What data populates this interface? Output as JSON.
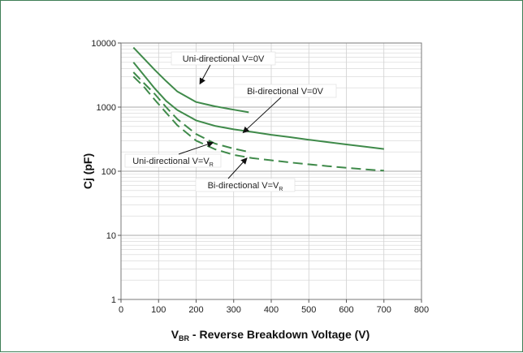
{
  "chart_data": {
    "type": "line",
    "title": "",
    "xlabel": {
      "main": "V",
      "sub": "BR",
      "rest": " - Reverse Breakdown Voltage (V)"
    },
    "ylabel": "Cj (pF)",
    "xlim": [
      0,
      800
    ],
    "ylim": [
      1,
      10000
    ],
    "yscale": "log",
    "grid": true,
    "legend": "none",
    "x_ticks": [
      0,
      100,
      200,
      300,
      400,
      500,
      600,
      700,
      800
    ],
    "x_tick_labels": [
      "0",
      "100",
      "200",
      "300",
      "400",
      "500",
      "600",
      "700",
      "800"
    ],
    "y_ticks": [
      1,
      10,
      100,
      1000,
      10000
    ],
    "y_tick_labels": [
      "1",
      "10",
      "100",
      "1000",
      "10000"
    ],
    "line_color": "#3f8a4a",
    "series": [
      {
        "style": "solid",
        "x": [
          33,
          60,
          90,
          120,
          150,
          200,
          250,
          300,
          340
        ],
        "y": [
          8500,
          5800,
          3800,
          2550,
          1750,
          1200,
          1030,
          910,
          830
        ]
      },
      {
        "style": "solid",
        "x": [
          33,
          60,
          90,
          120,
          150,
          200,
          250,
          300,
          350,
          400,
          450,
          500,
          550,
          600,
          650,
          700
        ],
        "y": [
          5000,
          3200,
          1950,
          1250,
          900,
          620,
          510,
          450,
          410,
          370,
          340,
          310,
          285,
          262,
          242,
          222
        ]
      },
      {
        "style": "dashed",
        "x": [
          33,
          60,
          90,
          120,
          150,
          200,
          250,
          300,
          340
        ],
        "y": [
          3500,
          2400,
          1600,
          1000,
          650,
          380,
          270,
          225,
          200
        ]
      },
      {
        "style": "dashed",
        "x": [
          33,
          60,
          90,
          120,
          150,
          200,
          250,
          300,
          350,
          400,
          450,
          500,
          550,
          600,
          650,
          700
        ],
        "y": [
          3000,
          2100,
          1300,
          820,
          520,
          300,
          220,
          180,
          160,
          148,
          137,
          128,
          120,
          113,
          107,
          102
        ]
      }
    ],
    "annotations": [
      {
        "text": "Uni-directional V=0V",
        "arrow_to": [
          210,
          2300
        ]
      },
      {
        "text": "Bi-directional V=0V",
        "arrow_to": [
          325,
          400
        ]
      },
      {
        "text": "Uni-directional V=V",
        "sub": "R",
        "arrow_to": [
          245,
          280
        ]
      },
      {
        "text": "Bi-directional V=V",
        "sub": "R",
        "arrow_to": [
          335,
          160
        ]
      }
    ]
  }
}
